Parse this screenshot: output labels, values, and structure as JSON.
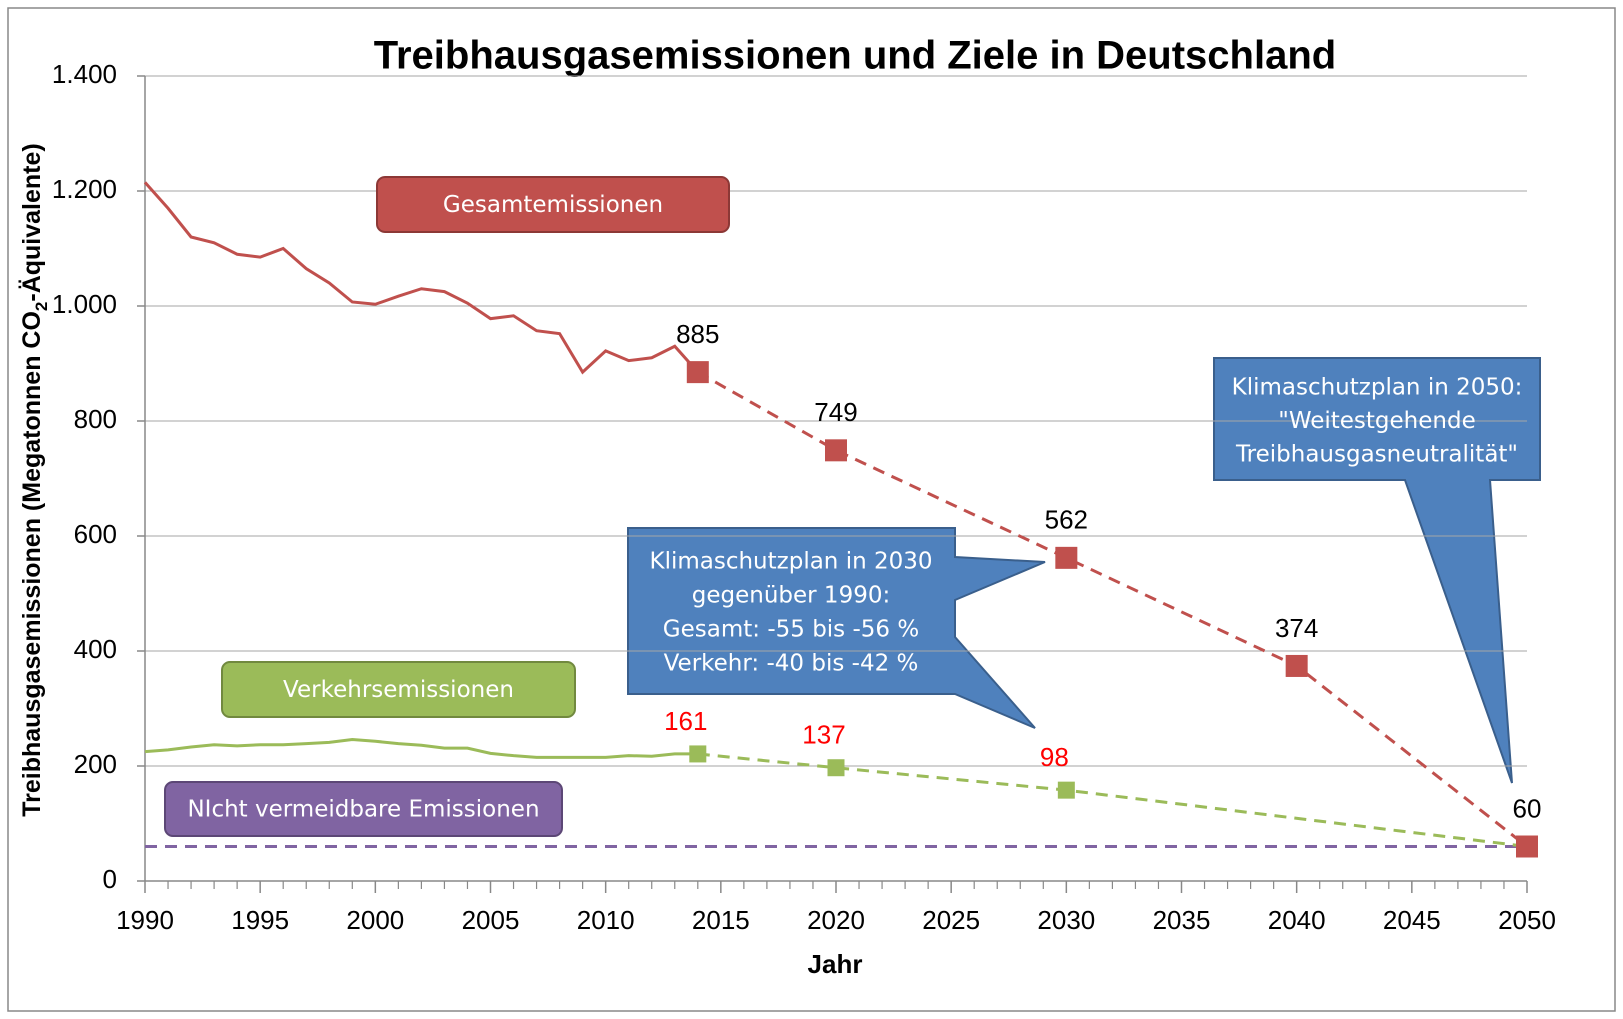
{
  "chart_data": {
    "type": "line",
    "title": "Treibhausgasemissionen und Ziele in Deutschland",
    "xlabel": "Jahr",
    "ylabel": [
      "Treibhausgasemissionen (Megatonnen CO",
      "2",
      "-Äquivalente)"
    ],
    "xlim": [
      1990,
      2050
    ],
    "xticks": [
      1990,
      1995,
      2000,
      2005,
      2010,
      2015,
      2020,
      2025,
      2030,
      2035,
      2040,
      2045,
      2050
    ],
    "ylim": [
      0,
      1400
    ],
    "yticks": [
      0,
      200,
      400,
      600,
      800,
      {
        "value": 1000,
        "label": "1.000"
      },
      {
        "value": 1200,
        "label": "1.200"
      },
      {
        "value": 1400,
        "label": "1.400"
      }
    ],
    "grid": true,
    "series": [
      {
        "name": "Gesamtemissionen",
        "color": "#c0504d",
        "x": [
          1990,
          1991,
          1992,
          1993,
          1994,
          1995,
          1996,
          1997,
          1998,
          1999,
          2000,
          2001,
          2002,
          2003,
          2004,
          2005,
          2006,
          2007,
          2008,
          2009,
          2010,
          2011,
          2012,
          2013,
          2014
        ],
        "values": [
          1215,
          1170,
          1120,
          1110,
          1090,
          1085,
          1100,
          1065,
          1040,
          1007,
          1003,
          1017,
          1030,
          1025,
          1005,
          978,
          983,
          957,
          952,
          885,
          922,
          905,
          910,
          930,
          885
        ]
      },
      {
        "name": "Verkehrsemissionen",
        "color": "#9bbb59",
        "x": [
          1990,
          1991,
          1992,
          1993,
          1994,
          1995,
          1996,
          1997,
          1998,
          1999,
          2000,
          2001,
          2002,
          2003,
          2004,
          2005,
          2006,
          2007,
          2008,
          2009,
          2010,
          2011,
          2012,
          2013,
          2014
        ],
        "values": [
          225,
          228,
          233,
          237,
          235,
          237,
          237,
          239,
          241,
          246,
          243,
          239,
          236,
          231,
          231,
          222,
          218,
          215,
          215,
          215,
          215,
          218,
          217,
          221,
          221
        ]
      },
      {
        "name": "NIcht vermeidbare Emissionen",
        "color": "#8064a2",
        "dashed": true,
        "x": [
          1990,
          2050
        ],
        "values": [
          60,
          60
        ]
      }
    ],
    "target_series": [
      {
        "color": "#c0504d",
        "x": [
          2014,
          2020,
          2030,
          2040,
          2050
        ],
        "values": [
          885,
          749,
          562,
          374,
          60
        ]
      },
      {
        "color": "#9bbb59",
        "x": [
          2014,
          2020,
          2030,
          2050
        ],
        "values": [
          221,
          197,
          158,
          60
        ],
        "point_labels": [
          "161",
          "137",
          "98",
          null
        ]
      }
    ],
    "callouts": [
      {
        "lines": [
          "Klimaschutzplan in 2030",
          "gegenüber 1990:",
          "Gesamt: -55 bis -56 %",
          "Verkehr: -40 bis -42 %"
        ]
      },
      {
        "lines": [
          "Klimaschutzplan in 2050:",
          "\"Weitestgehende",
          "Treibhausgasneutralität\""
        ]
      }
    ]
  }
}
